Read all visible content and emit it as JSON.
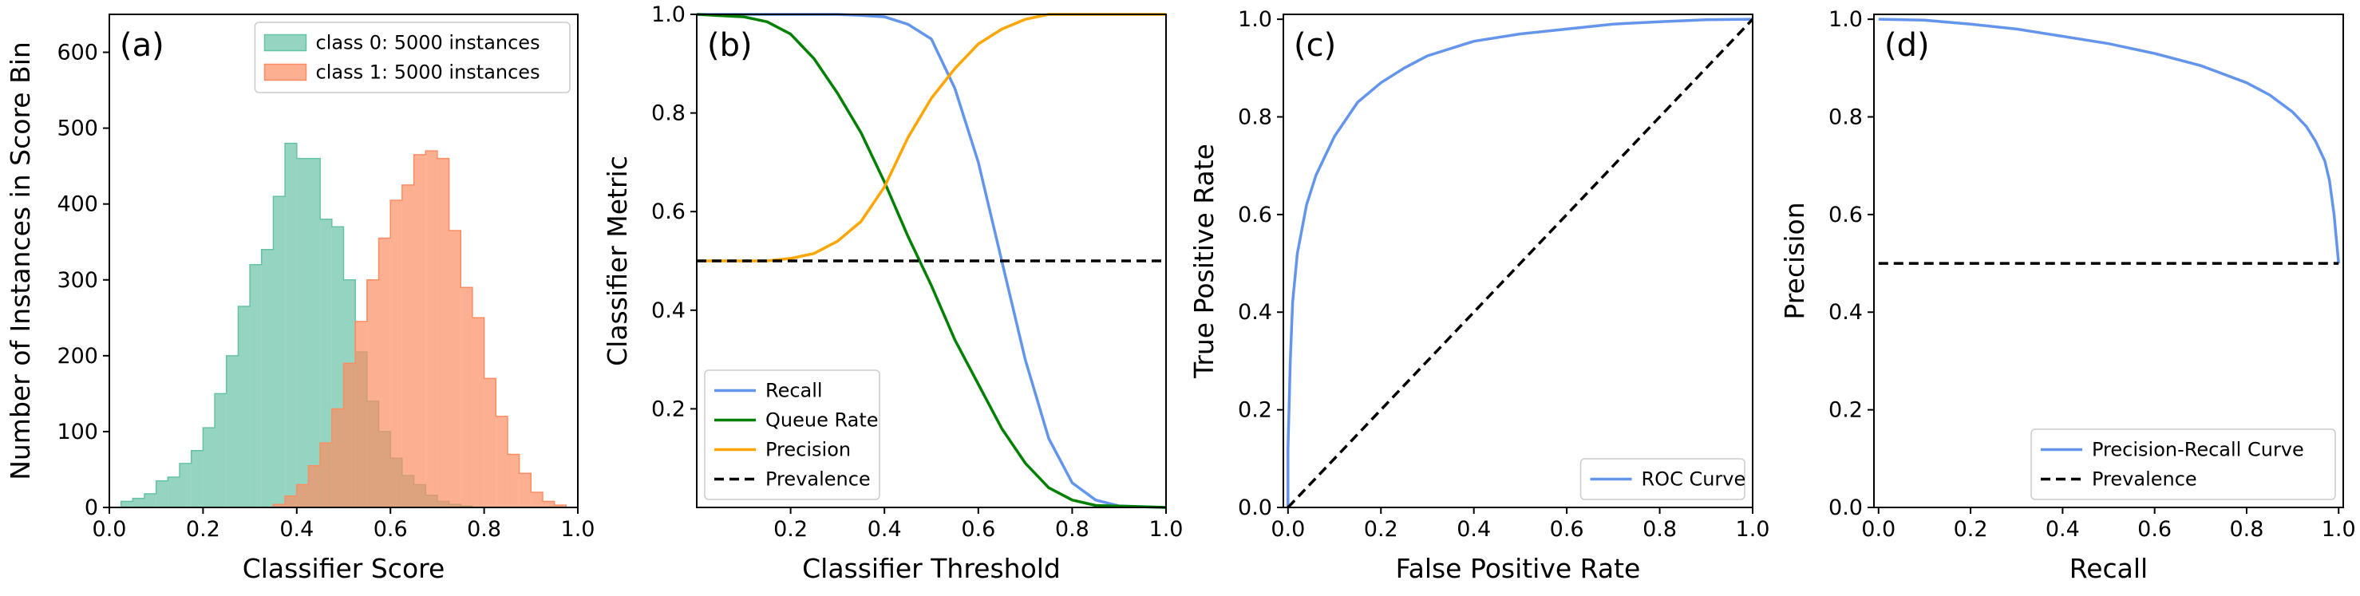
{
  "colors": {
    "class0": "#66c2a5",
    "class1": "#fc8d62",
    "recall": "#6495ed",
    "queue_rate": "#008000",
    "precision": "#ffa500",
    "prevalence": "#000000"
  },
  "chart_data": [
    {
      "panel_label": "(a)",
      "type": "histogram",
      "xlabel": "Classifier Score",
      "ylabel": "Number of Instances in Score Bin",
      "xlim": [
        0.0,
        1.0
      ],
      "ylim": [
        0,
        650
      ],
      "x_ticks": [
        "0.0",
        "0.2",
        "0.4",
        "0.6",
        "0.8",
        "1.0"
      ],
      "y_ticks": [
        "0",
        "100",
        "200",
        "300",
        "400",
        "500",
        "600"
      ],
      "legend_position": "upper right",
      "bin_edges": [
        0.0,
        0.025,
        0.05,
        0.075,
        0.1,
        0.125,
        0.15,
        0.175,
        0.2,
        0.225,
        0.25,
        0.275,
        0.3,
        0.325,
        0.35,
        0.375,
        0.4,
        0.425,
        0.45,
        0.475,
        0.5,
        0.525,
        0.55,
        0.575,
        0.6,
        0.625,
        0.65,
        0.675,
        0.7,
        0.725,
        0.75,
        0.775,
        0.8,
        0.825,
        0.85,
        0.875,
        0.9,
        0.925,
        0.95,
        0.975,
        1.0
      ],
      "series": [
        {
          "name": "class 0: 5000 instances",
          "color_key": "class0",
          "values": [
            0,
            8,
            12,
            18,
            35,
            40,
            58,
            75,
            105,
            150,
            200,
            265,
            320,
            340,
            410,
            480,
            460,
            460,
            380,
            370,
            300,
            205,
            140,
            100,
            65,
            42,
            30,
            16,
            8,
            4,
            2,
            0,
            0,
            0,
            0,
            0,
            0,
            0,
            0,
            0
          ]
        },
        {
          "name": "class 1: 5000 instances",
          "color_key": "class1",
          "values": [
            0,
            0,
            0,
            0,
            0,
            0,
            0,
            0,
            0,
            0,
            0,
            0,
            0,
            0,
            4,
            15,
            30,
            55,
            85,
            130,
            190,
            245,
            300,
            355,
            405,
            425,
            465,
            470,
            460,
            365,
            290,
            250,
            170,
            120,
            70,
            45,
            20,
            8,
            3,
            0
          ]
        }
      ]
    },
    {
      "panel_label": "(b)",
      "type": "line",
      "xlabel": "Classifier Threshold",
      "ylabel": "Classifier Metric",
      "xlim": [
        0.0,
        1.0
      ],
      "ylim": [
        0.0,
        1.0
      ],
      "x_ticks": [
        "0.2",
        "0.4",
        "0.6",
        "0.8",
        "1.0"
      ],
      "y_ticks": [
        "0.2",
        "0.4",
        "0.6",
        "0.8",
        "1.0"
      ],
      "legend_position": "lower left",
      "series": [
        {
          "name": "Recall",
          "color_key": "recall",
          "style": "solid",
          "x": [
            0.0,
            0.2,
            0.3,
            0.35,
            0.4,
            0.45,
            0.5,
            0.55,
            0.6,
            0.65,
            0.7,
            0.75,
            0.8,
            0.85,
            0.9,
            1.0
          ],
          "y": [
            1.0,
            1.0,
            1.0,
            0.998,
            0.995,
            0.98,
            0.95,
            0.85,
            0.7,
            0.5,
            0.3,
            0.14,
            0.05,
            0.015,
            0.003,
            0.0
          ]
        },
        {
          "name": "Queue Rate",
          "color_key": "queue_rate",
          "style": "solid",
          "x": [
            0.0,
            0.1,
            0.15,
            0.2,
            0.25,
            0.3,
            0.35,
            0.4,
            0.45,
            0.5,
            0.55,
            0.6,
            0.65,
            0.7,
            0.75,
            0.8,
            0.85,
            1.0
          ],
          "y": [
            1.0,
            0.995,
            0.985,
            0.96,
            0.91,
            0.84,
            0.76,
            0.66,
            0.55,
            0.45,
            0.34,
            0.25,
            0.16,
            0.09,
            0.04,
            0.015,
            0.004,
            0.0
          ]
        },
        {
          "name": "Precision",
          "color_key": "precision",
          "style": "solid",
          "x": [
            0.0,
            0.15,
            0.2,
            0.25,
            0.3,
            0.35,
            0.4,
            0.45,
            0.5,
            0.55,
            0.6,
            0.65,
            0.7,
            0.75,
            0.8,
            1.0
          ],
          "y": [
            0.5,
            0.5,
            0.505,
            0.515,
            0.54,
            0.58,
            0.65,
            0.75,
            0.83,
            0.89,
            0.94,
            0.97,
            0.99,
            1.0,
            1.0,
            1.0
          ]
        },
        {
          "name": "Prevalence",
          "color_key": "prevalence",
          "style": "dashed",
          "x": [
            0.0,
            1.0
          ],
          "y": [
            0.5,
            0.5
          ]
        }
      ]
    },
    {
      "panel_label": "(c)",
      "type": "line",
      "xlabel": "False Positive Rate",
      "ylabel": "True Positive Rate",
      "xlim": [
        -0.01,
        1.0
      ],
      "ylim": [
        0.0,
        1.01
      ],
      "x_ticks": [
        "0.0",
        "0.2",
        "0.4",
        "0.6",
        "0.8",
        "1.0"
      ],
      "y_ticks": [
        "0.0",
        "0.2",
        "0.4",
        "0.6",
        "0.8",
        "1.0"
      ],
      "legend_position": "lower right",
      "series": [
        {
          "name": "ROC Curve",
          "color_key": "recall",
          "style": "solid",
          "x": [
            0.0,
            0.0,
            0.005,
            0.01,
            0.02,
            0.04,
            0.06,
            0.08,
            0.1,
            0.15,
            0.2,
            0.25,
            0.3,
            0.4,
            0.5,
            0.6,
            0.7,
            0.8,
            0.9,
            1.0
          ],
          "y": [
            0.0,
            0.12,
            0.3,
            0.42,
            0.52,
            0.62,
            0.68,
            0.72,
            0.76,
            0.83,
            0.87,
            0.9,
            0.925,
            0.955,
            0.97,
            0.98,
            0.99,
            0.995,
            0.999,
            1.0
          ]
        },
        {
          "name": "",
          "color_key": "prevalence",
          "style": "dashed",
          "x": [
            0.0,
            1.0
          ],
          "y": [
            0.0,
            1.0
          ]
        }
      ]
    },
    {
      "panel_label": "(d)",
      "type": "line",
      "xlabel": "Recall",
      "ylabel": "Precision",
      "xlim": [
        -0.01,
        1.01
      ],
      "ylim": [
        0.0,
        1.01
      ],
      "x_ticks": [
        "0.0",
        "0.2",
        "0.4",
        "0.6",
        "0.8",
        "1.0"
      ],
      "y_ticks": [
        "0.0",
        "0.2",
        "0.4",
        "0.6",
        "0.8",
        "1.0"
      ],
      "legend_position": "lower right",
      "series": [
        {
          "name": "Precision-Recall Curve",
          "color_key": "recall",
          "style": "solid",
          "x": [
            0.0,
            0.1,
            0.2,
            0.3,
            0.4,
            0.5,
            0.6,
            0.7,
            0.8,
            0.85,
            0.9,
            0.93,
            0.95,
            0.97,
            0.98,
            0.99,
            1.0
          ],
          "y": [
            1.0,
            0.998,
            0.99,
            0.98,
            0.965,
            0.95,
            0.93,
            0.905,
            0.87,
            0.845,
            0.81,
            0.78,
            0.75,
            0.71,
            0.67,
            0.6,
            0.5
          ]
        },
        {
          "name": "Prevalence",
          "color_key": "prevalence",
          "style": "dashed",
          "x": [
            0.0,
            1.0
          ],
          "y": [
            0.5,
            0.5
          ]
        }
      ]
    }
  ]
}
